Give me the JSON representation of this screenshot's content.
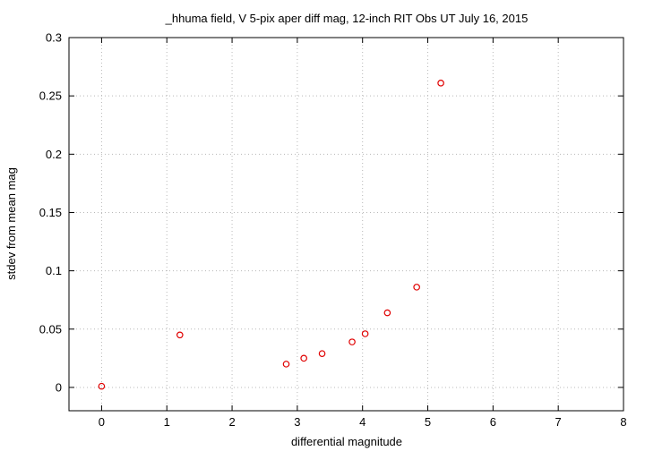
{
  "chart_data": {
    "type": "scatter",
    "title": "_hhuma field, V 5-pix aper diff mag,  12-inch RIT Obs UT July 16, 2015",
    "xlabel": "differential magnitude",
    "ylabel": "stdev from mean mag",
    "xlim": [
      -0.5,
      8
    ],
    "ylim": [
      -0.02,
      0.3
    ],
    "xticks": [
      0,
      1,
      2,
      3,
      4,
      5,
      6,
      7,
      8
    ],
    "xtick_labels": [
      "0",
      "1",
      "2",
      "3",
      "4",
      "5",
      "6",
      "7",
      "8"
    ],
    "yticks": [
      0,
      0.05,
      0.1,
      0.15,
      0.2,
      0.25,
      0.3
    ],
    "ytick_labels": [
      "0",
      "0.05",
      "0.1",
      "0.15",
      "0.2",
      "0.25",
      "0.3"
    ],
    "grid": true,
    "marker": "open-circle",
    "marker_color": "#e00000",
    "points": [
      {
        "x": 0.0,
        "y": 0.001
      },
      {
        "x": 1.2,
        "y": 0.045
      },
      {
        "x": 2.83,
        "y": 0.02
      },
      {
        "x": 3.1,
        "y": 0.025
      },
      {
        "x": 3.38,
        "y": 0.029
      },
      {
        "x": 3.84,
        "y": 0.039
      },
      {
        "x": 4.04,
        "y": 0.046
      },
      {
        "x": 4.38,
        "y": 0.064
      },
      {
        "x": 4.83,
        "y": 0.086
      },
      {
        "x": 5.2,
        "y": 0.261
      }
    ]
  }
}
